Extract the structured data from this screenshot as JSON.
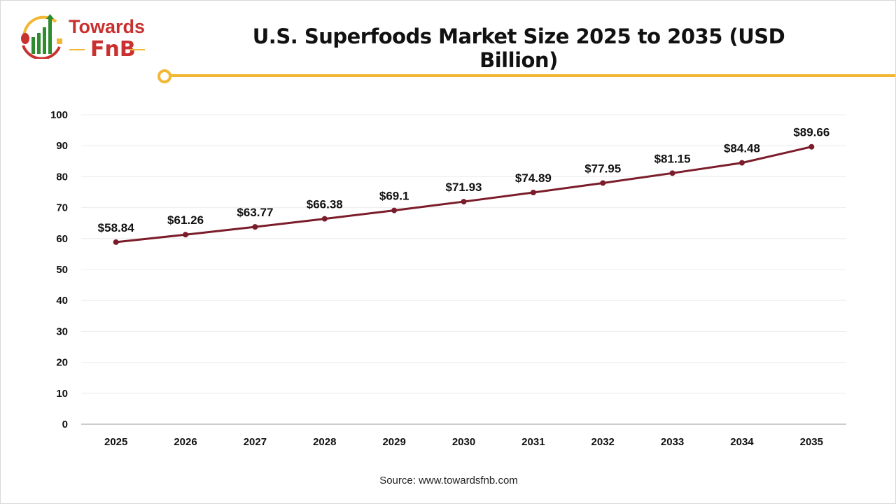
{
  "logo": {
    "line1": "Towards",
    "line2": "FnB"
  },
  "colors": {
    "line": "#7b1c2a",
    "accent": "#f2b733",
    "logo_red": "#c8312f",
    "logo_green": "#2e8b2e"
  },
  "source": "Source: www.towardsfnb.com",
  "chart_data": {
    "type": "line",
    "title": "U.S. Superfoods Market Size 2025 to 2035 (USD Billion)",
    "categories": [
      "2025",
      "2026",
      "2027",
      "2028",
      "2029",
      "2030",
      "2031",
      "2032",
      "2033",
      "2034",
      "2035"
    ],
    "values": [
      58.84,
      61.26,
      63.77,
      66.38,
      69.1,
      71.93,
      74.89,
      77.95,
      81.15,
      84.48,
      89.66
    ],
    "data_labels": [
      "$58.84",
      "$61.26",
      "$63.77",
      "$66.38",
      "$69.1",
      "$71.93",
      "$74.89",
      "$77.95",
      "$81.15",
      "$84.48",
      "$89.66"
    ],
    "yticks": [
      "0",
      "10",
      "20",
      "30",
      "40",
      "50",
      "60",
      "70",
      "80",
      "90",
      "100"
    ],
    "ylim": [
      0,
      100
    ],
    "grid": true,
    "xlabel": "",
    "ylabel": ""
  }
}
